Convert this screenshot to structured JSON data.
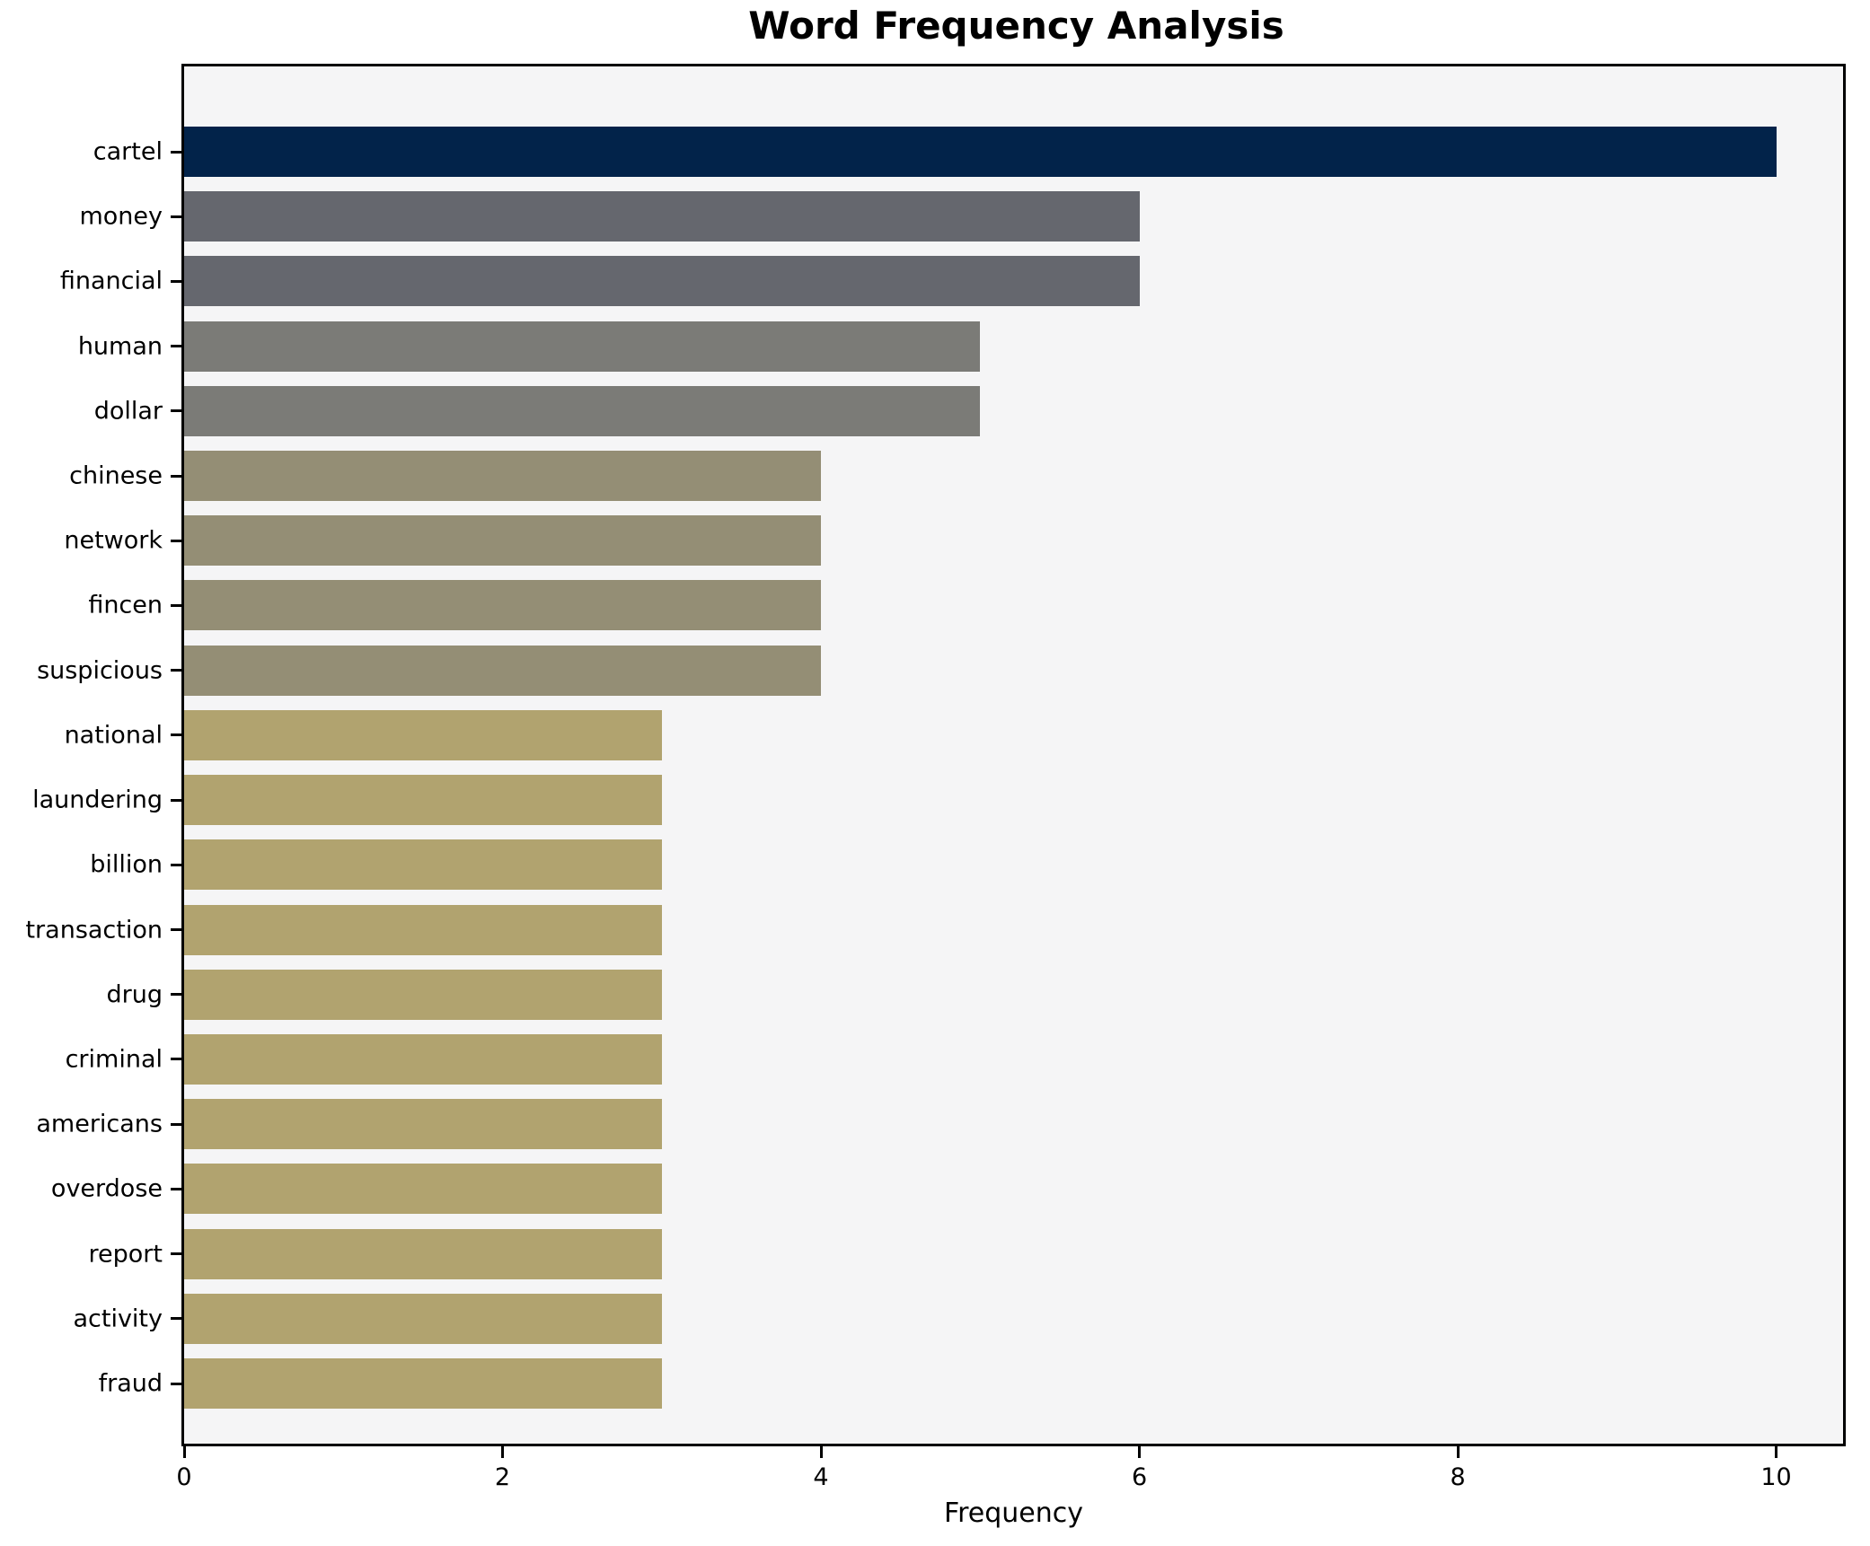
{
  "chart_data": {
    "type": "bar",
    "orientation": "horizontal",
    "title": "Word Frequency Analysis",
    "xlabel": "Frequency",
    "ylabel": "",
    "xlim": [
      0,
      10.42
    ],
    "xticks": [
      0,
      2,
      4,
      6,
      8,
      10
    ],
    "grid": false,
    "legend_position": "none",
    "categories": [
      "cartel",
      "money",
      "financial",
      "human",
      "dollar",
      "chinese",
      "network",
      "fincen",
      "suspicious",
      "national",
      "laundering",
      "billion",
      "transaction",
      "drug",
      "criminal",
      "americans",
      "overdose",
      "report",
      "activity",
      "fraud"
    ],
    "values": [
      10,
      6,
      6,
      5,
      5,
      4,
      4,
      4,
      4,
      3,
      3,
      3,
      3,
      3,
      3,
      3,
      3,
      3,
      3,
      3
    ],
    "bar_colors": [
      "#02234a",
      "#65676e",
      "#65676e",
      "#7b7b77",
      "#7b7b77",
      "#948e75",
      "#948e75",
      "#948e75",
      "#948e75",
      "#b1a36f",
      "#b1a36f",
      "#b1a36f",
      "#b1a36f",
      "#b1a36f",
      "#b1a36f",
      "#b1a36f",
      "#b1a36f",
      "#b1a36f",
      "#b1a36f",
      "#b1a36f"
    ],
    "colors": {
      "figure_background": "#ffffff",
      "plot_background": "#f5f5f6",
      "spine": "#000000",
      "text": "#000000"
    }
  }
}
